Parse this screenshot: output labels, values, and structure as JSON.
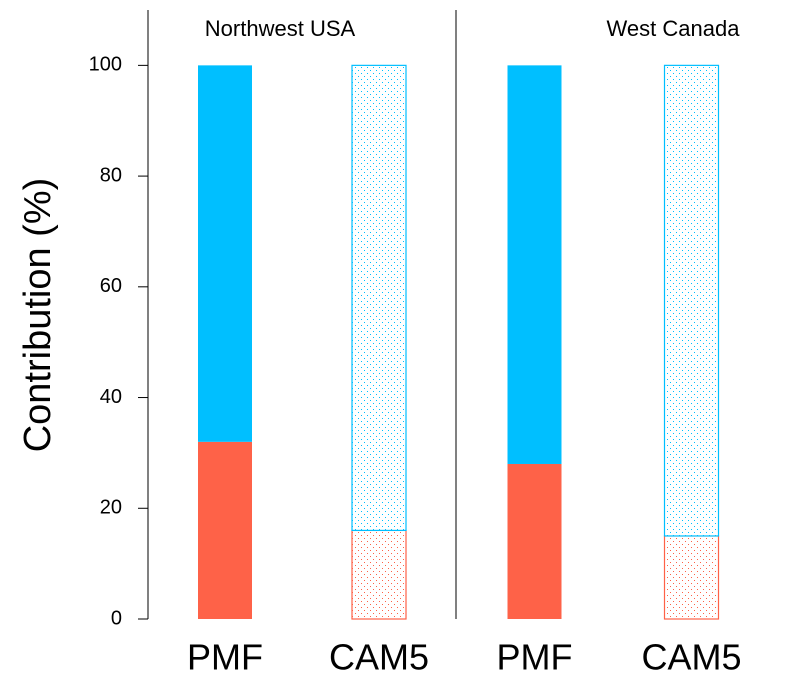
{
  "chart_data": [
    {
      "type": "bar",
      "title": "Northwest USA",
      "ylabel": "Contribution (%)",
      "categories": [
        "PMF",
        "CAM5"
      ],
      "hatched": [
        false,
        true
      ],
      "series": [
        {
          "color": "#fe6248",
          "values": [
            32,
            16
          ]
        },
        {
          "color": "#00bfff",
          "values": [
            68,
            84
          ]
        }
      ],
      "ylim": [
        0,
        110
      ],
      "yticks": [
        0,
        20,
        40,
        60,
        80,
        100
      ]
    },
    {
      "type": "bar",
      "title": "West Canada",
      "categories": [
        "PMF",
        "CAM5"
      ],
      "hatched": [
        false,
        true
      ],
      "series": [
        {
          "color": "#fe6248",
          "values": [
            28,
            15
          ]
        },
        {
          "color": "#00bfff",
          "values": [
            72,
            85
          ]
        }
      ],
      "ylim": [
        0,
        110
      ]
    }
  ]
}
